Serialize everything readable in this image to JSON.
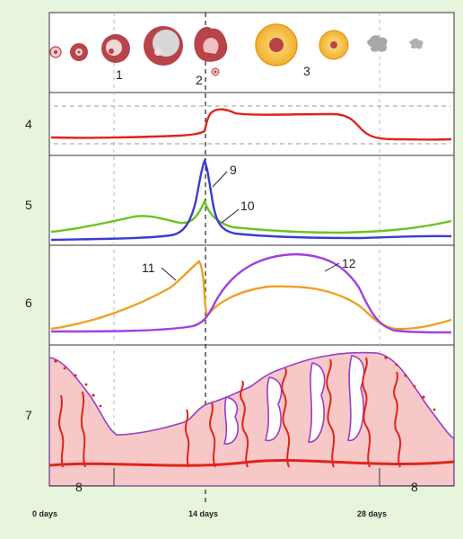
{
  "figure": {
    "colors": {
      "background": "#e6f5dc",
      "panel": "#ffffff",
      "temperature": "#e0241b",
      "lh": "#3b3bd6",
      "fsh": "#6cc41f",
      "estrogen": "#f0a024",
      "progesterone": "#a040e0",
      "endometrium": "#f7c8c8",
      "vessel": "#e0241b"
    },
    "ovary_stages": [
      {
        "label": "1",
        "icon": "developing-follicle-icon"
      },
      {
        "label": "2",
        "icon": "ovulation-icon"
      },
      {
        "label": "3",
        "icon": "corpus-luteum-icon"
      }
    ],
    "row_labels": [
      "4",
      "5",
      "6",
      "7"
    ],
    "curve_labels": {
      "c9": "9",
      "c10": "10",
      "c11": "11",
      "c12": "12"
    },
    "menstruation_labels": [
      "8",
      "8"
    ],
    "x_axis": {
      "ticks": [
        "0 days",
        "14 days",
        "28 days"
      ]
    }
  }
}
